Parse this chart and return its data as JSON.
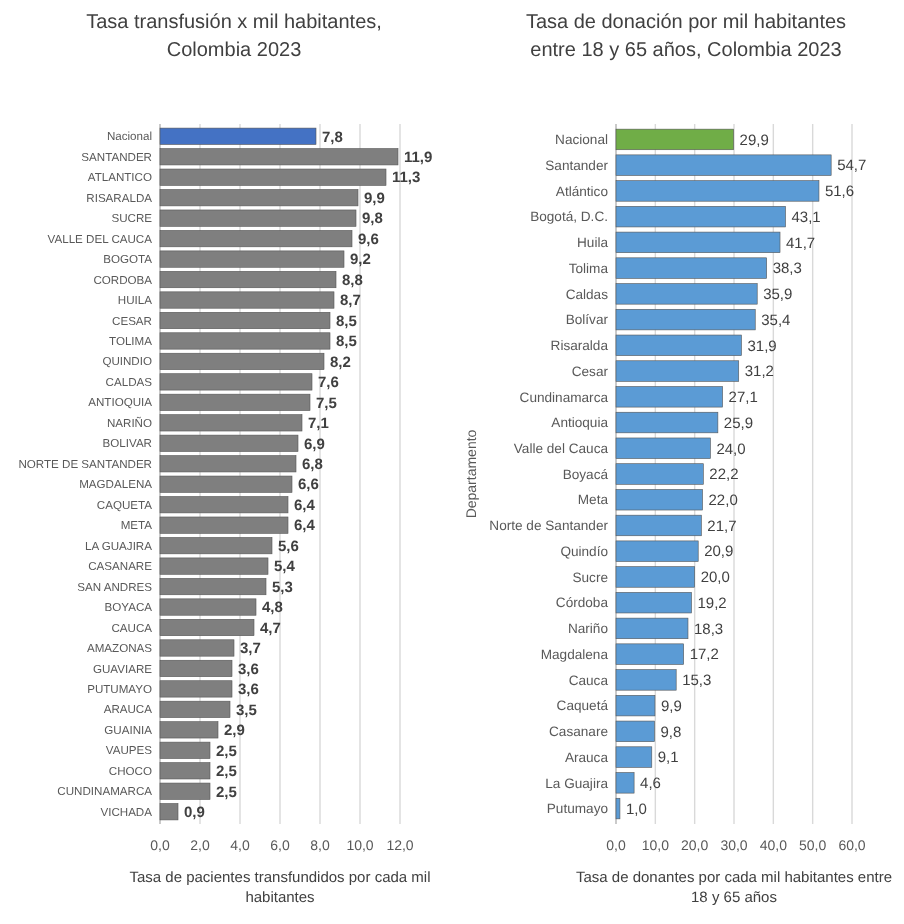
{
  "chart_data": [
    {
      "type": "bar",
      "orientation": "horizontal",
      "title": "Tasa transfusión x mil habitantes, Colombia 2023",
      "xlabel": "Tasa de pacientes transfundidos por cada mil habitantes",
      "categories": [
        "Nacional",
        "SANTANDER",
        "ATLANTICO",
        "RISARALDA",
        "SUCRE",
        "VALLE DEL CAUCA",
        "BOGOTA",
        "CORDOBA",
        "HUILA",
        "CESAR",
        "TOLIMA",
        "QUINDIO",
        "CALDAS",
        "ANTIOQUIA",
        "NARIÑO",
        "BOLIVAR",
        "NORTE DE SANTANDER",
        "MAGDALENA",
        "CAQUETA",
        "META",
        "LA GUAJIRA",
        "CASANARE",
        "SAN ANDRES",
        "BOYACA",
        "CAUCA",
        "AMAZONAS",
        "GUAVIARE",
        "PUTUMAYO",
        "ARAUCA",
        "GUAINIA",
        "VAUPES",
        "CHOCO",
        "CUNDINAMARCA",
        "VICHADA"
      ],
      "values": [
        7.8,
        11.9,
        11.3,
        9.9,
        9.8,
        9.6,
        9.2,
        8.8,
        8.7,
        8.5,
        8.5,
        8.2,
        7.6,
        7.5,
        7.1,
        6.9,
        6.8,
        6.6,
        6.4,
        6.4,
        5.6,
        5.4,
        5.3,
        4.8,
        4.7,
        3.7,
        3.6,
        3.6,
        3.5,
        2.9,
        2.5,
        2.5,
        2.5,
        0.9
      ],
      "value_labels": [
        "7,8",
        "11,9",
        "11,3",
        "9,9",
        "9,8",
        "9,6",
        "9,2",
        "8,8",
        "8,7",
        "8,5",
        "8,5",
        "8,2",
        "7,6",
        "7,5",
        "7,1",
        "6,9",
        "6,8",
        "6,6",
        "6,4",
        "6,4",
        "5,6",
        "5,4",
        "5,3",
        "4,8",
        "4,7",
        "3,7",
        "3,6",
        "3,6",
        "3,5",
        "2,9",
        "2,5",
        "2,5",
        "2,5",
        "0,9"
      ],
      "colors": [
        "#4472c4",
        "#7f7f7f",
        "#7f7f7f",
        "#7f7f7f",
        "#7f7f7f",
        "#7f7f7f",
        "#7f7f7f",
        "#7f7f7f",
        "#7f7f7f",
        "#7f7f7f",
        "#7f7f7f",
        "#7f7f7f",
        "#7f7f7f",
        "#7f7f7f",
        "#7f7f7f",
        "#7f7f7f",
        "#7f7f7f",
        "#7f7f7f",
        "#7f7f7f",
        "#7f7f7f",
        "#7f7f7f",
        "#7f7f7f",
        "#7f7f7f",
        "#7f7f7f",
        "#7f7f7f",
        "#7f7f7f",
        "#7f7f7f",
        "#7f7f7f",
        "#7f7f7f",
        "#7f7f7f",
        "#7f7f7f",
        "#7f7f7f",
        "#7f7f7f",
        "#7f7f7f"
      ],
      "xlim": [
        0,
        12
      ],
      "xticks": [
        {
          "value": 0,
          "label": "0,0"
        },
        {
          "value": 2,
          "label": "2,0"
        },
        {
          "value": 4,
          "label": "4,0"
        },
        {
          "value": 6,
          "label": "6,0"
        },
        {
          "value": 8,
          "label": "8,0"
        },
        {
          "value": 10,
          "label": "10,0"
        },
        {
          "value": 12,
          "label": "12,0"
        }
      ],
      "grid": "x"
    },
    {
      "type": "bar",
      "orientation": "horizontal",
      "title": "Tasa de donación por mil habitantes entre 18 y 65 años, Colombia 2023",
      "xlabel": "Tasa de donantes por cada mil habitantes entre 18 y 65 años",
      "ylabel": "Departamento",
      "categories": [
        "Nacional",
        "Santander",
        "Atlántico",
        "Bogotá, D.C.",
        "Huila",
        "Tolima",
        "Caldas",
        "Bolívar",
        "Risaralda",
        "Cesar",
        "Cundinamarca",
        "Antioquia",
        "Valle del Cauca",
        "Boyacá",
        "Meta",
        "Norte de Santander",
        "Quindío",
        "Sucre",
        "Córdoba",
        "Nariño",
        "Magdalena",
        "Cauca",
        "Caquetá",
        "Casanare",
        "Arauca",
        "La Guajira",
        "Putumayo"
      ],
      "values": [
        29.9,
        54.7,
        51.6,
        43.1,
        41.7,
        38.3,
        35.9,
        35.4,
        31.9,
        31.2,
        27.1,
        25.9,
        24.0,
        22.2,
        22.0,
        21.7,
        20.9,
        20.0,
        19.2,
        18.3,
        17.2,
        15.3,
        9.9,
        9.8,
        9.1,
        4.6,
        1.0
      ],
      "value_labels": [
        "29,9",
        "54,7",
        "51,6",
        "43,1",
        "41,7",
        "38,3",
        "35,9",
        "35,4",
        "31,9",
        "31,2",
        "27,1",
        "25,9",
        "24,0",
        "22,2",
        "22,0",
        "21,7",
        "20,9",
        "20,0",
        "19,2",
        "18,3",
        "17,2",
        "15,3",
        "9,9",
        "9,8",
        "9,1",
        "4,6",
        "1,0"
      ],
      "colors": [
        "#70ad47",
        "#5b9bd5",
        "#5b9bd5",
        "#5b9bd5",
        "#5b9bd5",
        "#5b9bd5",
        "#5b9bd5",
        "#5b9bd5",
        "#5b9bd5",
        "#5b9bd5",
        "#5b9bd5",
        "#5b9bd5",
        "#5b9bd5",
        "#5b9bd5",
        "#5b9bd5",
        "#5b9bd5",
        "#5b9bd5",
        "#5b9bd5",
        "#5b9bd5",
        "#5b9bd5",
        "#5b9bd5",
        "#5b9bd5",
        "#5b9bd5",
        "#5b9bd5",
        "#5b9bd5",
        "#5b9bd5",
        "#5b9bd5"
      ],
      "xlim": [
        0,
        60
      ],
      "xticks": [
        {
          "value": 0,
          "label": "0,0"
        },
        {
          "value": 10,
          "label": "10,0"
        },
        {
          "value": 20,
          "label": "20,0"
        },
        {
          "value": 30,
          "label": "30,0"
        },
        {
          "value": 40,
          "label": "40,0"
        },
        {
          "value": 50,
          "label": "50,0"
        },
        {
          "value": 60,
          "label": "60,0"
        }
      ],
      "grid": "x"
    }
  ]
}
